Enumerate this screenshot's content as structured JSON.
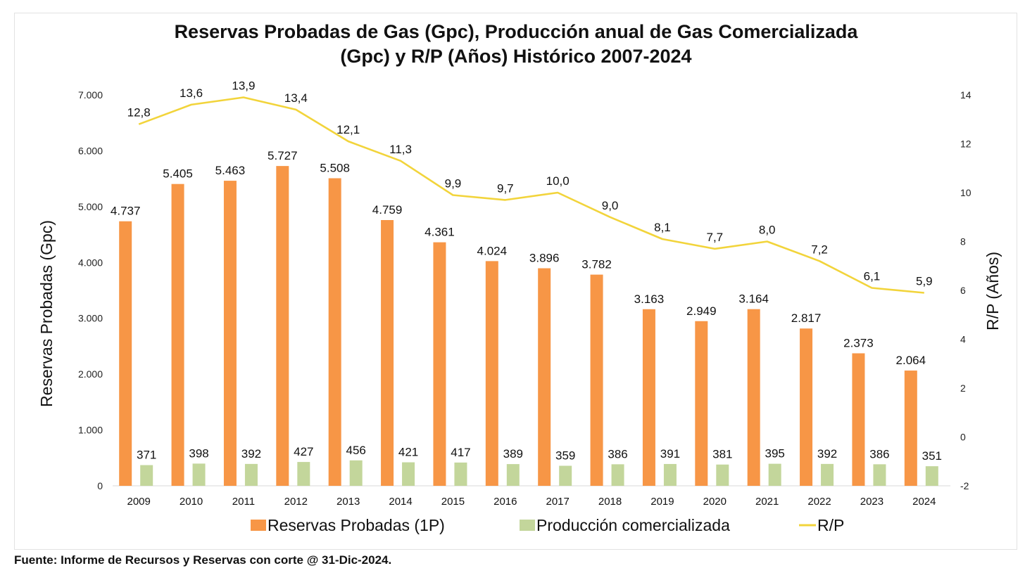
{
  "chart_data": {
    "type": "bar+line",
    "title_lines": [
      "Reservas Probadas de Gas (Gpc), Producción anual de Gas Comercializada",
      "(Gpc) y R/P (Años) Histórico 2007-2024"
    ],
    "ylabel_left": "Reservas Probadas (Gpc)",
    "ylabel_right": "R/P (Años)",
    "ylim_left": [
      0,
      7000
    ],
    "ylim_right": [
      -2,
      14
    ],
    "yticks_left": [
      {
        "value": 0,
        "label": "0"
      },
      {
        "value": 1000,
        "label": "1.000"
      },
      {
        "value": 2000,
        "label": "2.000"
      },
      {
        "value": 3000,
        "label": "3.000"
      },
      {
        "value": 4000,
        "label": "4.000"
      },
      {
        "value": 5000,
        "label": "5.000"
      },
      {
        "value": 6000,
        "label": "6.000"
      },
      {
        "value": 7000,
        "label": "7.000"
      }
    ],
    "yticks_right": [
      {
        "value": -2,
        "label": "-2"
      },
      {
        "value": 0,
        "label": "0"
      },
      {
        "value": 2,
        "label": "2"
      },
      {
        "value": 4,
        "label": "4"
      },
      {
        "value": 6,
        "label": "6"
      },
      {
        "value": 8,
        "label": "8"
      },
      {
        "value": 10,
        "label": "10"
      },
      {
        "value": 12,
        "label": "12"
      },
      {
        "value": 14,
        "label": "14"
      }
    ],
    "categories": [
      "2009",
      "2010",
      "2011",
      "2012",
      "2013",
      "2014",
      "2015",
      "2016",
      "2017",
      "2018",
      "2019",
      "2020",
      "2021",
      "2022",
      "2023",
      "2024"
    ],
    "series": [
      {
        "name": "Reservas Probadas (1P)",
        "type": "bar",
        "axis": "left",
        "color": "#F79646",
        "values": [
          4737,
          5405,
          5463,
          5727,
          5508,
          4759,
          4361,
          4024,
          3896,
          3782,
          3163,
          2949,
          3164,
          2817,
          2373,
          2064
        ],
        "labels": [
          "4.737",
          "5.405",
          "5.463",
          "5.727",
          "5.508",
          "4.759",
          "4.361",
          "4.024",
          "3.896",
          "3.782",
          "3.163",
          "2.949",
          "3.164",
          "2.817",
          "2.373",
          "2.064"
        ]
      },
      {
        "name": "Producción comercializada",
        "type": "bar",
        "axis": "left",
        "color": "#C3D69B",
        "values": [
          371,
          398,
          392,
          427,
          456,
          421,
          417,
          389,
          359,
          386,
          391,
          381,
          395,
          392,
          386,
          351
        ],
        "labels": [
          "371",
          "398",
          "392",
          "427",
          "456",
          "421",
          "417",
          "389",
          "359",
          "386",
          "391",
          "381",
          "395",
          "392",
          "386",
          "351"
        ]
      },
      {
        "name": "R/P",
        "type": "line",
        "axis": "right",
        "color": "#F2D43B",
        "values": [
          12.8,
          13.6,
          13.9,
          13.4,
          12.1,
          11.3,
          9.9,
          9.7,
          10.0,
          9.0,
          8.1,
          7.7,
          8.0,
          7.2,
          6.1,
          5.9
        ],
        "labels": [
          "12,8",
          "13,6",
          "13,9",
          "13,4",
          "12,1",
          "11,3",
          "9,9",
          "9,7",
          "10,0",
          "9,0",
          "8,1",
          "7,7",
          "8,0",
          "7,2",
          "6,1",
          "5,9"
        ]
      }
    ],
    "legend_position": "bottom"
  },
  "source_text": "Fuente: Informe de Recursos y Reservas con corte @ 31-Dic-2024."
}
